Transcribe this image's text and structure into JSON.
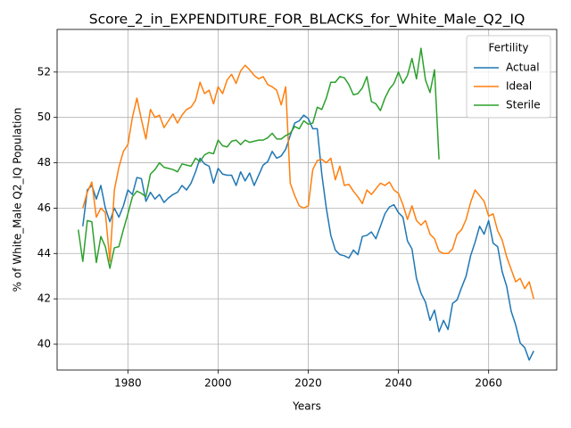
{
  "chart_data": {
    "type": "line",
    "title": "Score_2_in_EXPENDITURE_FOR_BLACKS_for_White_Male_Q2_IQ",
    "x_label": "Years",
    "y_label": "% of White_Male Q2_IQ Population",
    "legend_title": "Fertility",
    "legend_position": "upper right",
    "grid": true,
    "xlim": [
      1964.3,
      2075.1
    ],
    "ylim": [
      38.86,
      53.88
    ],
    "xticks": [
      1980,
      2000,
      2020,
      2040,
      2060
    ],
    "yticks": [
      40,
      42,
      44,
      46,
      48,
      50,
      52
    ],
    "x": [
      1969,
      1970,
      1971,
      1972,
      1973,
      1974,
      1975,
      1976,
      1977,
      1978,
      1979,
      1980,
      1981,
      1982,
      1983,
      1984,
      1985,
      1986,
      1987,
      1988,
      1989,
      1990,
      1991,
      1992,
      1993,
      1994,
      1995,
      1996,
      1997,
      1998,
      1999,
      2000,
      2001,
      2002,
      2003,
      2004,
      2005,
      2006,
      2007,
      2008,
      2009,
      2010,
      2011,
      2012,
      2013,
      2014,
      2015,
      2016,
      2017,
      2018,
      2019,
      2020,
      2021,
      2022,
      2023,
      2024,
      2025,
      2026,
      2027,
      2028,
      2029,
      2030,
      2031,
      2032,
      2033,
      2034,
      2035,
      2036,
      2037,
      2038,
      2039,
      2040,
      2041,
      2042,
      2043,
      2044,
      2045,
      2046,
      2047,
      2048,
      2049,
      2050,
      2051,
      2052,
      2053,
      2054,
      2055,
      2056,
      2057,
      2058,
      2059,
      2060,
      2061,
      2062,
      2063,
      2064,
      2065,
      2066,
      2067,
      2068,
      2069,
      2070
    ],
    "series": [
      {
        "name": "Actual",
        "color": "#1f77b4",
        "values": [
          null,
          45.2,
          46.8,
          47.0,
          46.4,
          47.0,
          46.0,
          45.4,
          46.0,
          45.6,
          46.1,
          46.8,
          46.6,
          47.35,
          47.3,
          46.3,
          46.7,
          46.4,
          46.6,
          46.25,
          46.45,
          46.6,
          46.7,
          47.0,
          46.8,
          47.1,
          47.6,
          48.2,
          47.95,
          47.85,
          47.1,
          47.75,
          47.5,
          47.45,
          47.45,
          47.0,
          47.6,
          47.2,
          47.55,
          47.0,
          47.45,
          47.9,
          48.05,
          48.5,
          48.2,
          48.3,
          48.6,
          49.2,
          49.75,
          49.85,
          50.1,
          49.95,
          49.5,
          49.5,
          47.5,
          46.0,
          44.8,
          44.15,
          43.95,
          43.9,
          43.8,
          44.15,
          43.95,
          44.75,
          44.8,
          44.95,
          44.65,
          45.2,
          45.75,
          46.05,
          46.15,
          45.8,
          45.6,
          44.55,
          44.2,
          42.9,
          42.25,
          41.85,
          41.05,
          41.5,
          40.55,
          41.05,
          40.65,
          41.8,
          41.95,
          42.5,
          43.0,
          43.9,
          44.5,
          45.2,
          44.85,
          45.45,
          44.45,
          44.3,
          43.2,
          42.55,
          41.45,
          40.85,
          40.05,
          39.85,
          39.3,
          39.7
        ]
      },
      {
        "name": "Ideal",
        "color": "#ff7f0e",
        "values": [
          null,
          46.0,
          46.7,
          47.15,
          45.6,
          46.0,
          45.8,
          43.65,
          46.8,
          47.8,
          48.5,
          48.8,
          50.0,
          50.85,
          49.9,
          49.05,
          50.35,
          50.0,
          50.1,
          49.55,
          49.85,
          50.15,
          49.75,
          50.1,
          50.35,
          50.45,
          50.75,
          51.55,
          51.05,
          51.2,
          50.6,
          51.35,
          51.05,
          51.65,
          51.9,
          51.5,
          52.05,
          52.3,
          52.1,
          51.85,
          51.7,
          51.8,
          51.45,
          51.35,
          51.2,
          50.55,
          51.35,
          47.1,
          46.55,
          46.1,
          46.0,
          46.1,
          47.7,
          48.1,
          48.15,
          48.0,
          48.2,
          47.25,
          47.85,
          47.0,
          47.05,
          46.75,
          46.5,
          46.2,
          46.8,
          46.6,
          46.85,
          47.1,
          47.0,
          47.15,
          46.8,
          46.65,
          46.15,
          45.5,
          46.1,
          45.45,
          45.25,
          45.45,
          44.85,
          44.65,
          44.1,
          44.0,
          44.0,
          44.2,
          44.85,
          45.05,
          45.5,
          46.25,
          46.8,
          46.55,
          46.3,
          45.65,
          45.75,
          45.0,
          44.6,
          43.85,
          43.3,
          42.75,
          42.9,
          42.45,
          42.75,
          42.0
        ]
      },
      {
        "name": "Sterile",
        "color": "#2ca02c",
        "values": [
          45.05,
          43.65,
          45.45,
          45.4,
          43.6,
          44.75,
          44.3,
          43.35,
          44.25,
          44.3,
          45.05,
          45.75,
          46.5,
          46.75,
          46.65,
          46.5,
          47.5,
          47.7,
          48.0,
          47.8,
          47.75,
          47.7,
          47.6,
          47.95,
          47.9,
          47.85,
          48.2,
          48.05,
          48.35,
          48.45,
          48.4,
          49.0,
          48.75,
          48.7,
          48.95,
          49.0,
          48.8,
          49.0,
          48.9,
          48.95,
          49.0,
          49.0,
          49.1,
          49.3,
          49.05,
          49.05,
          49.2,
          49.3,
          49.6,
          49.5,
          49.85,
          49.7,
          49.75,
          50.45,
          50.35,
          50.85,
          51.55,
          51.55,
          51.8,
          51.75,
          51.45,
          51.0,
          51.05,
          51.3,
          51.8,
          50.7,
          50.6,
          50.3,
          50.85,
          51.25,
          51.5,
          52.0,
          51.5,
          51.85,
          52.6,
          51.7,
          53.05,
          51.65,
          51.1,
          52.1,
          48.15,
          null,
          null,
          null,
          null,
          null,
          null,
          null,
          null,
          null,
          null,
          null,
          null,
          null,
          null,
          null,
          null,
          null,
          null,
          null,
          null,
          null
        ]
      }
    ]
  }
}
